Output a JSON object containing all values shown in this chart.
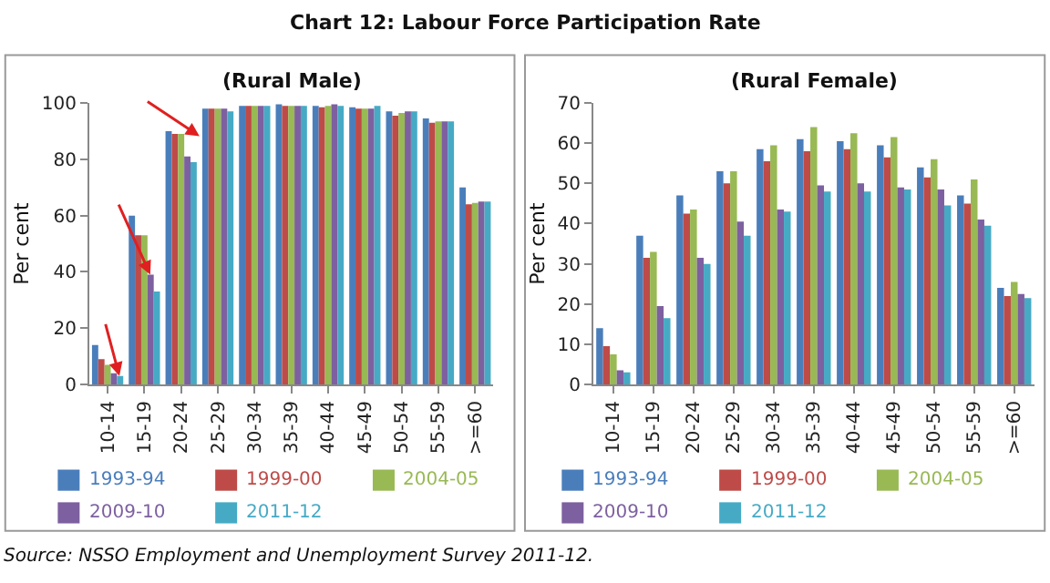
{
  "chart_data": [
    {
      "type": "bar",
      "title": "Chart 12: Labour Force Participation Rate",
      "subtitle": "(Rural Male)",
      "ylabel": "Per cent",
      "categories": [
        "10-14",
        "15-19",
        "20-24",
        "25-29",
        "30-34",
        "35-39",
        "40-44",
        "45-49",
        "50-54",
        "55-59",
        ">=60"
      ],
      "series": [
        {
          "name": "1993-94",
          "color": "#4a7ebb",
          "values": [
            14,
            60,
            90,
            98,
            99,
            99.5,
            99,
            98.5,
            97,
            94.5,
            70
          ]
        },
        {
          "name": "1999-00",
          "color": "#be4b48",
          "values": [
            9,
            53,
            89,
            98,
            99,
            99,
            98.5,
            98,
            95.5,
            93,
            64
          ]
        },
        {
          "name": "2004-05",
          "color": "#98b954",
          "values": [
            7,
            53,
            89,
            98,
            99,
            99,
            99,
            98,
            96.5,
            93.5,
            64.5
          ]
        },
        {
          "name": "2009-10",
          "color": "#7d60a0",
          "values": [
            4,
            39,
            81,
            98,
            99,
            99,
            99.5,
            98,
            97,
            93.5,
            65
          ]
        },
        {
          "name": "2011-12",
          "color": "#46aac5",
          "values": [
            3,
            33,
            79,
            97,
            99,
            99,
            99,
            99,
            97,
            93.5,
            65
          ]
        }
      ],
      "ylim": [
        0,
        100
      ],
      "yticks": [
        0,
        20,
        40,
        60,
        80,
        100
      ],
      "grid": false,
      "legend": "bottom",
      "annotations": [
        "Source: NSSO Employment and Unemployment Survey 2011-12."
      ]
    },
    {
      "type": "bar",
      "title": "(Rural Female)",
      "ylabel": "Per cent",
      "categories": [
        "10-14",
        "15-19",
        "20-24",
        "25-29",
        "30-34",
        "35-39",
        "40-44",
        "45-49",
        "50-54",
        "55-59",
        ">=60"
      ],
      "series": [
        {
          "name": "1993-94",
          "color": "#4a7ebb",
          "values": [
            14,
            37,
            47,
            53,
            58.5,
            61,
            60.5,
            59.5,
            54,
            47,
            24
          ]
        },
        {
          "name": "1999-00",
          "color": "#be4b48",
          "values": [
            9.5,
            31.5,
            42.5,
            50,
            55.5,
            58,
            58.5,
            56.5,
            51.5,
            45,
            22
          ]
        },
        {
          "name": "2004-05",
          "color": "#98b954",
          "values": [
            7.5,
            33,
            43.5,
            53,
            59.5,
            64,
            62.5,
            61.5,
            56,
            51,
            25.5
          ]
        },
        {
          "name": "2009-10",
          "color": "#7d60a0",
          "values": [
            3.5,
            19.5,
            31.5,
            40.5,
            43.5,
            49.5,
            50,
            49,
            48.5,
            41,
            22.5
          ]
        },
        {
          "name": "2011-12",
          "color": "#46aac5",
          "values": [
            3,
            16.5,
            30,
            37,
            43,
            48,
            48,
            48.5,
            44.5,
            39.5,
            21.5
          ]
        }
      ],
      "ylim": [
        0,
        70
      ],
      "yticks": [
        0,
        10,
        20,
        30,
        40,
        50,
        60,
        70
      ],
      "grid": false,
      "legend": "bottom"
    }
  ]
}
